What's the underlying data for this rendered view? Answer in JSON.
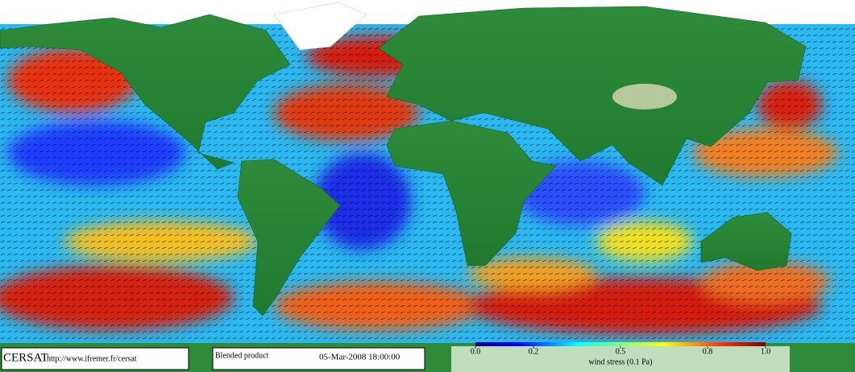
{
  "logo": "CERSAT",
  "url": "http://www.ifremer.fr/cersat",
  "product": "Blended product",
  "timestamp": "05-Mar-2008 18:00:00",
  "colorbar": {
    "label": "wind stress (0.1 Pa)",
    "range": [
      0,
      1
    ],
    "ticks": [
      {
        "value": 0,
        "label": "0.0"
      },
      0.2,
      0.5,
      0.8,
      {
        "value": 1,
        "label": "1.0"
      }
    ]
  }
}
